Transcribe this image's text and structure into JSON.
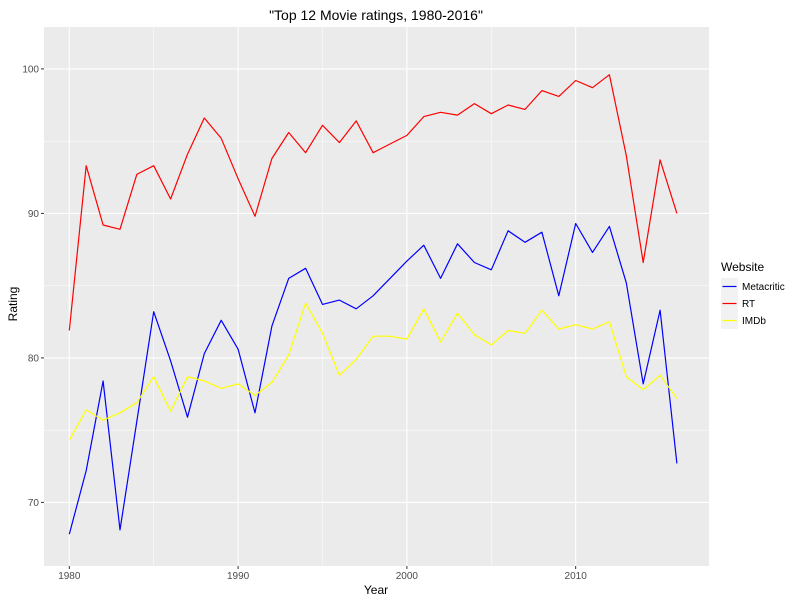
{
  "chart_data": {
    "type": "line",
    "title": "\"Top 12 Movie ratings, 1980-2016\"",
    "xlabel": "Year",
    "ylabel": "Rating",
    "xlim": [
      1978.5,
      2017.9
    ],
    "ylim": [
      65.6,
      102.9
    ],
    "x_ticks": [
      1980,
      1990,
      2000,
      2010
    ],
    "y_ticks": [
      70,
      80,
      90,
      100
    ],
    "grid": true,
    "legend": {
      "title": "Website",
      "position": "right"
    },
    "x": [
      1980,
      1981,
      1982,
      1983,
      1984,
      1985,
      1986,
      1987,
      1988,
      1989,
      1990,
      1991,
      1992,
      1993,
      1994,
      1995,
      1996,
      1997,
      1998,
      1999,
      2000,
      2001,
      2002,
      2003,
      2004,
      2005,
      2006,
      2007,
      2008,
      2009,
      2010,
      2011,
      2012,
      2013,
      2014,
      2015,
      2016
    ],
    "series": [
      {
        "name": "Metacritic",
        "color": "#0000ff",
        "values": [
          67.8,
          72.2,
          78.4,
          68.1,
          75.6,
          83.2,
          79.8,
          75.9,
          80.3,
          82.6,
          80.6,
          76.2,
          82.2,
          85.5,
          86.2,
          83.7,
          84.0,
          83.4,
          84.3,
          85.5,
          86.7,
          87.8,
          85.5,
          87.9,
          86.6,
          86.1,
          88.8,
          88.0,
          88.7,
          84.3,
          89.3,
          87.3,
          89.1,
          85.2,
          78.2,
          83.3,
          72.7
        ]
      },
      {
        "name": "RT",
        "color": "#ff0000",
        "values": [
          81.9,
          93.3,
          89.2,
          88.9,
          92.7,
          93.3,
          91.0,
          94.1,
          96.6,
          95.2,
          92.4,
          89.8,
          93.8,
          95.6,
          94.2,
          96.1,
          94.9,
          96.4,
          94.2,
          94.8,
          95.4,
          96.7,
          97.0,
          96.8,
          97.6,
          96.9,
          97.5,
          97.2,
          98.5,
          98.1,
          99.2,
          98.7,
          99.6,
          94.0,
          86.6,
          93.7,
          90.0
        ]
      },
      {
        "name": "IMDb",
        "color": "#ffff00",
        "values": [
          74.3,
          76.4,
          75.7,
          76.2,
          76.9,
          78.7,
          76.3,
          78.7,
          78.4,
          77.9,
          78.2,
          77.4,
          78.3,
          80.2,
          83.8,
          81.7,
          78.8,
          79.9,
          81.5,
          81.5,
          81.3,
          83.4,
          81.1,
          83.1,
          81.6,
          80.9,
          81.9,
          81.7,
          83.3,
          82.0,
          82.3,
          82.0,
          82.5,
          78.7,
          77.8,
          78.8,
          77.2
        ]
      }
    ]
  }
}
